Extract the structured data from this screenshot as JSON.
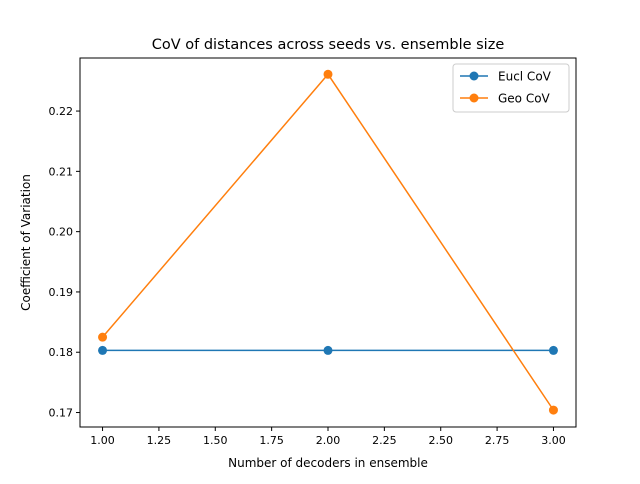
{
  "chart_data": {
    "type": "line",
    "title": "CoV of distances across seeds vs. ensemble size",
    "xlabel": "Number of decoders in ensemble",
    "ylabel": "Coefficient of Variation",
    "x": [
      1,
      2,
      3
    ],
    "xlim": [
      0.9,
      3.1
    ],
    "ylim": [
      0.1676,
      0.2288
    ],
    "xticks": [
      1.0,
      1.25,
      1.5,
      1.75,
      2.0,
      2.25,
      2.5,
      2.75,
      3.0
    ],
    "xtick_labels": [
      "1.00",
      "1.25",
      "1.50",
      "1.75",
      "2.00",
      "2.25",
      "2.50",
      "2.75",
      "3.00"
    ],
    "yticks": [
      0.17,
      0.18,
      0.19,
      0.2,
      0.21,
      0.22
    ],
    "ytick_labels": [
      "0.17",
      "0.18",
      "0.19",
      "0.20",
      "0.21",
      "0.22"
    ],
    "grid": false,
    "legend_position": "top-right",
    "series": [
      {
        "name": "Eucl CoV",
        "color": "#1f77b4",
        "marker": "circle",
        "values": [
          0.1803,
          0.1803,
          0.1803
        ]
      },
      {
        "name": "Geo CoV",
        "color": "#ff7f0e",
        "marker": "circle",
        "values": [
          0.1825,
          0.2261,
          0.1704
        ]
      }
    ]
  }
}
